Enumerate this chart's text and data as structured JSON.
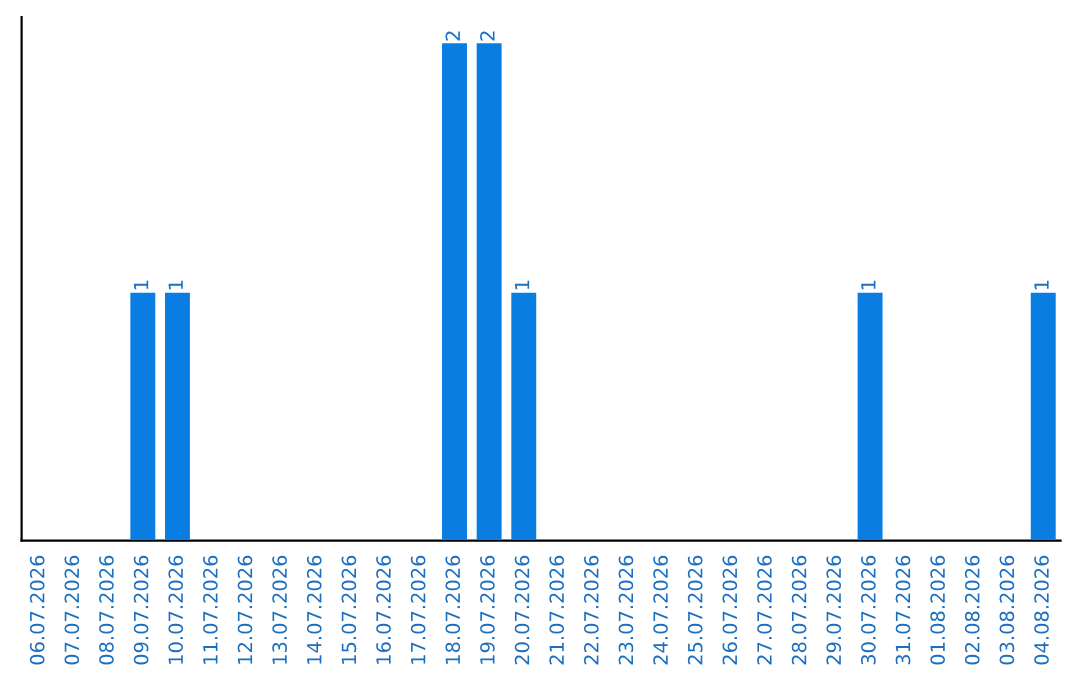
{
  "chart_data": {
    "type": "bar",
    "categories": [
      "06.07.2026",
      "07.07.2026",
      "08.07.2026",
      "09.07.2026",
      "10.07.2026",
      "11.07.2026",
      "12.07.2026",
      "13.07.2026",
      "14.07.2026",
      "15.07.2026",
      "16.07.2026",
      "17.07.2026",
      "18.07.2026",
      "19.07.2026",
      "20.07.2026",
      "21.07.2026",
      "22.07.2026",
      "23.07.2026",
      "24.07.2026",
      "25.07.2026",
      "26.07.2026",
      "27.07.2026",
      "28.07.2026",
      "29.07.2026",
      "30.07.2026",
      "31.07.2026",
      "01.08.2026",
      "02.08.2026",
      "03.08.2026",
      "04.08.2026"
    ],
    "values": [
      null,
      null,
      null,
      1,
      1,
      null,
      null,
      null,
      null,
      null,
      null,
      null,
      2,
      2,
      1,
      null,
      null,
      null,
      null,
      null,
      null,
      null,
      null,
      null,
      1,
      null,
      null,
      null,
      null,
      1
    ],
    "color": "#0a7de3",
    "ylim": [
      0,
      2.1
    ],
    "data_labels": true,
    "tick_labels": "x",
    "grid": false,
    "legend": false
  }
}
